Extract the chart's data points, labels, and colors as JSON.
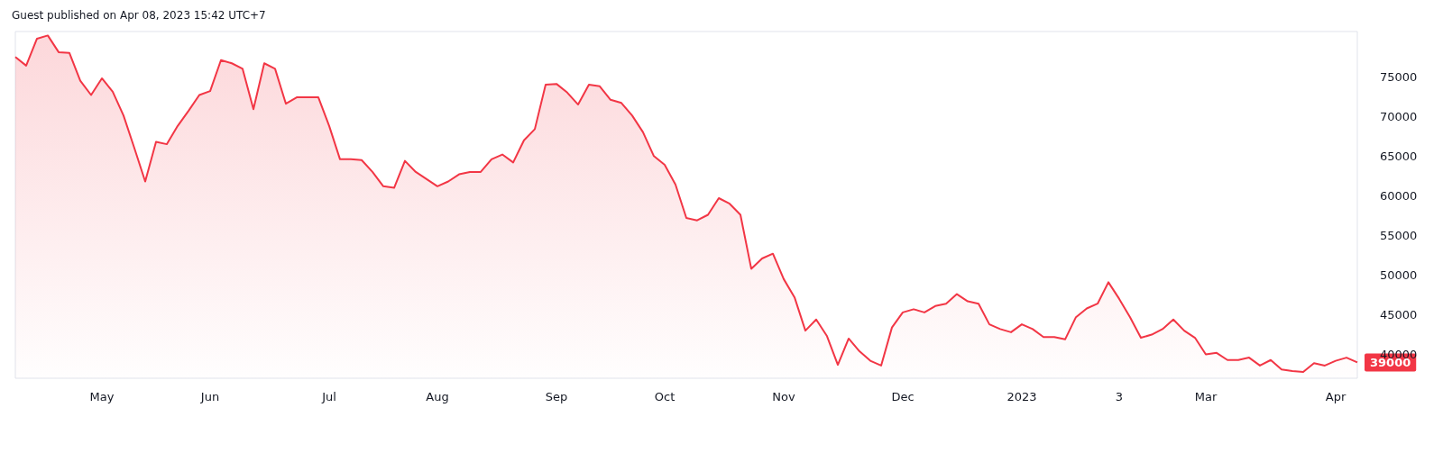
{
  "chart_data": {
    "type": "area",
    "title": "Guest published on Apr 08, 2023 15:42 UTC+7",
    "categories": [
      null,
      null,
      null,
      null,
      null,
      null,
      null,
      null,
      "May",
      null,
      null,
      null,
      null,
      null,
      null,
      null,
      null,
      null,
      "Jun",
      null,
      null,
      null,
      null,
      null,
      null,
      null,
      null,
      null,
      null,
      "Jul",
      null,
      null,
      null,
      null,
      null,
      null,
      null,
      null,
      null,
      "Aug",
      null,
      null,
      null,
      null,
      null,
      null,
      null,
      null,
      null,
      null,
      "Sep",
      null,
      null,
      null,
      null,
      null,
      null,
      null,
      null,
      null,
      "Oct",
      null,
      null,
      null,
      null,
      null,
      null,
      null,
      null,
      null,
      null,
      "Nov",
      null,
      null,
      null,
      null,
      null,
      null,
      null,
      null,
      null,
      null,
      "Dec",
      null,
      null,
      null,
      null,
      null,
      null,
      null,
      null,
      null,
      null,
      "2023",
      null,
      null,
      null,
      null,
      null,
      null,
      null,
      null,
      "3",
      null,
      null,
      null,
      null,
      null,
      null,
      null,
      "Mar",
      null,
      null,
      null,
      null,
      null,
      null,
      null,
      null,
      null,
      null,
      null,
      "Apr",
      null,
      null
    ],
    "series": [
      {
        "color": "#f23645",
        "values": [
          77500,
          76400,
          79800,
          80200,
          78100,
          78000,
          74500,
          72700,
          74800,
          73100,
          70100,
          66000,
          61800,
          66800,
          66500,
          68800,
          70700,
          72700,
          73200,
          77100,
          76700,
          76000,
          70900,
          76700,
          76000,
          71600,
          72400,
          72400,
          72400,
          68800,
          64600,
          64600,
          64500,
          63000,
          61200,
          61000,
          64400,
          63000,
          62100,
          61200,
          61800,
          62700,
          63000,
          63000,
          64600,
          65200,
          64200,
          67000,
          68400,
          74000,
          74100,
          73000,
          71500,
          74000,
          73800,
          72100,
          71700,
          70100,
          68000,
          65000,
          63900,
          61400,
          57200,
          56900,
          57600,
          59700,
          59000,
          57600,
          50800,
          52100,
          52700,
          49500,
          47200,
          43000,
          44400,
          42300,
          38700,
          42000,
          40400,
          39200,
          38600,
          43400,
          45300,
          45700,
          45300,
          46100,
          46400,
          47600,
          46700,
          46400,
          43800,
          43200,
          42800,
          43800,
          43200,
          42200,
          42200,
          41900,
          44700,
          45800,
          46400,
          49100,
          47000,
          44700,
          42100,
          42500,
          43200,
          44400,
          43000,
          42100,
          40000,
          40200,
          39300,
          39300,
          39600,
          38600,
          39300,
          38100,
          37900,
          37800,
          38900,
          38600,
          39200,
          39600,
          39000
        ]
      }
    ],
    "ylim": [
      37000,
      80700
    ],
    "yticks": [
      40000,
      45000,
      50000,
      55000,
      60000,
      65000,
      70000,
      75000
    ],
    "annotations": [
      "39000"
    ],
    "marker": "none",
    "grid": false
  }
}
